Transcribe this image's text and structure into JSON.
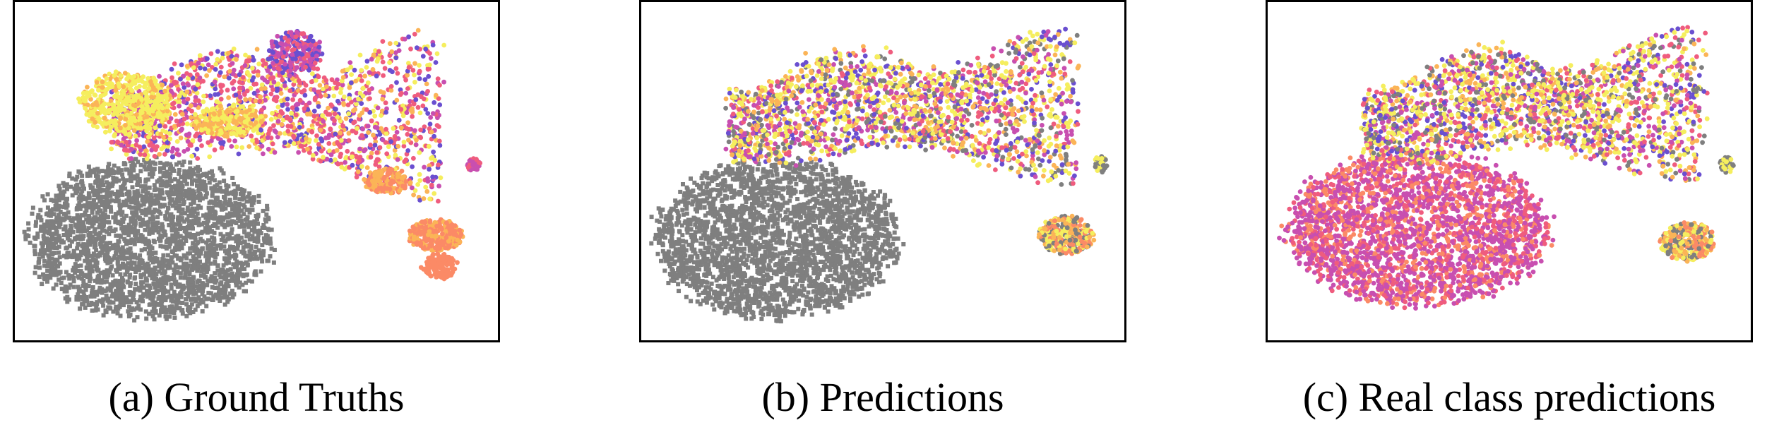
{
  "colors": {
    "gray": "#7f7f7f",
    "yellow": "#f5ee5e",
    "light_orange": "#fbb457",
    "salmon": "#fb8a66",
    "pink": "#ef5c7e",
    "magenta": "#c84fb0",
    "purple": "#6a4fd0",
    "frame": "#000000"
  },
  "chart_data": [
    {
      "type": "scatter",
      "title": "",
      "caption": "(a) Ground Truths",
      "xlabel": "",
      "ylabel": "",
      "axes_ticks": "none",
      "grid": false,
      "regions": [
        {
          "shape": "ellipse",
          "cx": 0.28,
          "cy": 0.7,
          "rx": 0.27,
          "ry": 0.25,
          "n": 2600,
          "palette": [
            "gray"
          ],
          "marker": "square"
        },
        {
          "shape": "band",
          "x": [
            0.2,
            0.88
          ],
          "y_top": [
            0.22,
            0.14
          ],
          "y_bottom": [
            0.4,
            0.55
          ],
          "n": 1600,
          "palette": [
            "magenta",
            "pink",
            "pink",
            "light_orange",
            "yellow",
            "purple"
          ],
          "marker": "circle"
        },
        {
          "shape": "ellipse",
          "cx": 0.23,
          "cy": 0.3,
          "rx": 0.1,
          "ry": 0.1,
          "n": 500,
          "palette": [
            "yellow",
            "yellow",
            "yellow",
            "light_orange"
          ],
          "marker": "circle"
        },
        {
          "shape": "ellipse",
          "cx": 0.58,
          "cy": 0.15,
          "rx": 0.06,
          "ry": 0.07,
          "n": 250,
          "palette": [
            "magenta",
            "pink",
            "purple"
          ],
          "marker": "circle"
        },
        {
          "shape": "ellipse",
          "cx": 0.44,
          "cy": 0.35,
          "rx": 0.08,
          "ry": 0.05,
          "n": 260,
          "palette": [
            "light_orange",
            "yellow"
          ],
          "marker": "circle"
        },
        {
          "shape": "ellipse",
          "cx": 0.77,
          "cy": 0.53,
          "rx": 0.05,
          "ry": 0.04,
          "n": 160,
          "palette": [
            "salmon",
            "light_orange"
          ],
          "marker": "circle"
        },
        {
          "shape": "ellipse",
          "cx": 0.87,
          "cy": 0.69,
          "rx": 0.06,
          "ry": 0.05,
          "n": 320,
          "palette": [
            "salmon",
            "salmon",
            "light_orange"
          ],
          "marker": "circle"
        },
        {
          "shape": "ellipse",
          "cx": 0.88,
          "cy": 0.78,
          "rx": 0.04,
          "ry": 0.04,
          "n": 120,
          "palette": [
            "salmon"
          ],
          "marker": "circle"
        },
        {
          "shape": "ellipse",
          "cx": 0.95,
          "cy": 0.48,
          "rx": 0.015,
          "ry": 0.02,
          "n": 40,
          "palette": [
            "magenta",
            "pink"
          ],
          "marker": "circle"
        }
      ]
    },
    {
      "type": "scatter",
      "title": "",
      "caption": "(b) Predictions",
      "xlabel": "",
      "ylabel": "",
      "axes_ticks": "none",
      "grid": false,
      "regions": [
        {
          "shape": "ellipse",
          "cx": 0.28,
          "cy": 0.7,
          "rx": 0.27,
          "ry": 0.25,
          "n": 2600,
          "palette": [
            "gray"
          ],
          "marker": "square"
        },
        {
          "shape": "band",
          "x": [
            0.18,
            0.9
          ],
          "y_top": [
            0.22,
            0.12
          ],
          "y_bottom": [
            0.42,
            0.5
          ],
          "n": 2000,
          "palette": [
            "yellow",
            "yellow",
            "pink",
            "magenta",
            "light_orange",
            "purple",
            "gray"
          ],
          "marker": "circle"
        },
        {
          "shape": "ellipse",
          "cx": 0.88,
          "cy": 0.69,
          "rx": 0.06,
          "ry": 0.06,
          "n": 320,
          "palette": [
            "yellow",
            "salmon",
            "light_orange",
            "gray"
          ],
          "marker": "circle"
        },
        {
          "shape": "ellipse",
          "cx": 0.95,
          "cy": 0.48,
          "rx": 0.015,
          "ry": 0.025,
          "n": 40,
          "palette": [
            "yellow",
            "gray"
          ],
          "marker": "circle"
        }
      ]
    },
    {
      "type": "scatter",
      "title": "",
      "caption": "(c) Real class predictions",
      "xlabel": "",
      "ylabel": "",
      "axes_ticks": "none",
      "grid": false,
      "regions": [
        {
          "shape": "ellipse",
          "cx": 0.31,
          "cy": 0.67,
          "rx": 0.29,
          "ry": 0.24,
          "n": 2600,
          "palette": [
            "magenta",
            "magenta",
            "pink",
            "salmon"
          ],
          "marker": "circle"
        },
        {
          "shape": "band",
          "x": [
            0.2,
            0.9
          ],
          "y_top": [
            0.22,
            0.12
          ],
          "y_bottom": [
            0.42,
            0.5
          ],
          "n": 2000,
          "palette": [
            "yellow",
            "yellow",
            "pink",
            "magenta",
            "light_orange",
            "purple",
            "gray"
          ],
          "marker": "circle"
        },
        {
          "shape": "ellipse",
          "cx": 0.87,
          "cy": 0.71,
          "rx": 0.06,
          "ry": 0.06,
          "n": 320,
          "palette": [
            "yellow",
            "salmon",
            "light_orange",
            "gray"
          ],
          "marker": "circle"
        },
        {
          "shape": "ellipse",
          "cx": 0.95,
          "cy": 0.48,
          "rx": 0.015,
          "ry": 0.025,
          "n": 40,
          "palette": [
            "yellow",
            "gray"
          ],
          "marker": "circle"
        }
      ]
    }
  ]
}
